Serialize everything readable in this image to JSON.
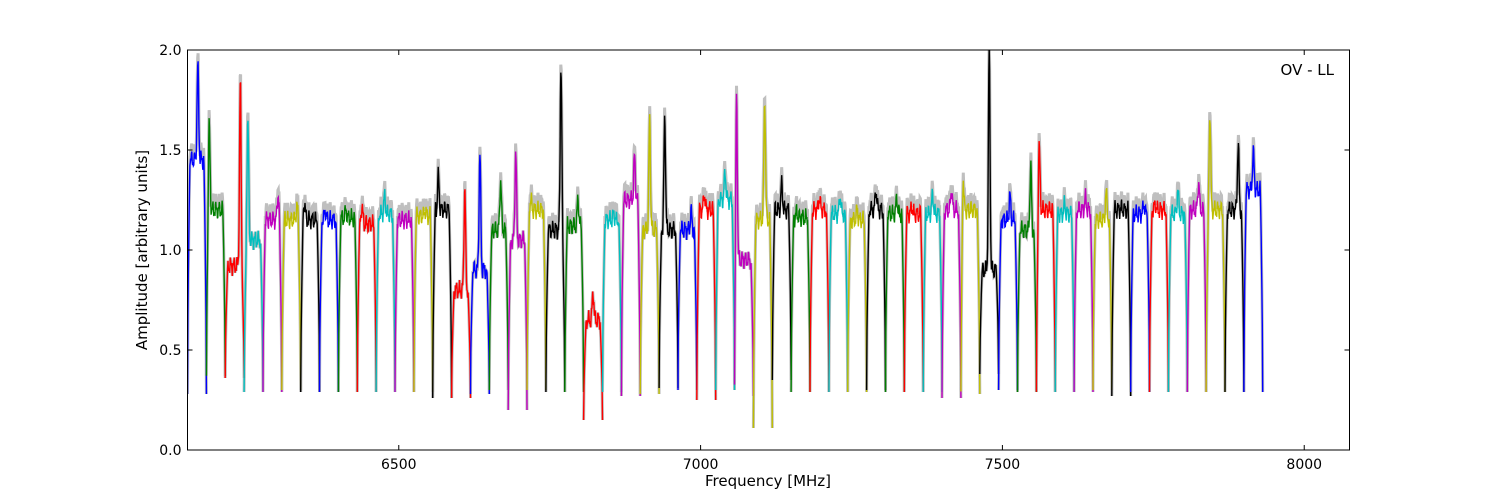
{
  "chart_data": {
    "type": "line",
    "xlabel": "Frequency [MHz]",
    "ylabel": "Amplitude [arbitrary units]",
    "annotation": "OV - LL",
    "xlim": [
      6150,
      8075
    ],
    "ylim": [
      0.0,
      2.0
    ],
    "xticks": [
      {
        "value": 6500,
        "label": "6500"
      },
      {
        "value": 7000,
        "label": "7000"
      },
      {
        "value": 7500,
        "label": "7500"
      },
      {
        "value": 8000,
        "label": "8000"
      }
    ],
    "yticks": [
      {
        "value": 0.0,
        "label": "0.0"
      },
      {
        "value": 0.5,
        "label": "0.5"
      },
      {
        "value": 1.0,
        "label": "1.0"
      },
      {
        "value": 1.5,
        "label": "1.5"
      },
      {
        "value": 2.0,
        "label": "2.0"
      }
    ],
    "grid": false,
    "legend": "none",
    "background_trace_color": "#bfbfbf",
    "palette": [
      "#0000ff",
      "#007f00",
      "#ff0000",
      "#00bfbf",
      "#bf00bf",
      "#bfbf00",
      "#000000"
    ],
    "band_start_mhz": 6150,
    "band_width_mhz": 31.25,
    "bands": [
      {
        "base": 1.45,
        "spikes": [
          [
            0.55,
            1.92
          ]
        ],
        "edge_low": 0.28,
        "color": "#0000ff"
      },
      {
        "base": 1.2,
        "spikes": [
          [
            0.15,
            1.62
          ]
        ],
        "edge_low": 0.37,
        "color": "#007f00"
      },
      {
        "base": 0.92,
        "spikes": [
          [
            0.8,
            1.84
          ]
        ],
        "edge_low": 0.36,
        "color": "#ff0000"
      },
      {
        "base": 1.05,
        "spikes": [
          [
            0.2,
            1.65
          ]
        ],
        "edge_low": 0.29,
        "color": "#00bfbf"
      },
      {
        "base": 1.15,
        "spikes": [
          [
            0.8,
            1.28
          ]
        ],
        "edge_low": 0.29,
        "color": "#bf00bf"
      },
      {
        "base": 1.15,
        "spikes": [
          [
            0.8,
            1.22
          ]
        ],
        "edge_low": 0.3,
        "color": "#bfbf00"
      },
      {
        "base": 1.15,
        "spikes": [
          [
            0.2,
            1.24
          ]
        ],
        "edge_low": 0.29,
        "color": "#000000"
      },
      {
        "base": 1.15,
        "spikes": [
          [
            0.3,
            1.2
          ]
        ],
        "edge_low": 0.29,
        "color": "#0000ff"
      },
      {
        "base": 1.16,
        "spikes": [
          [
            0.4,
            1.2
          ]
        ],
        "edge_low": 0.29,
        "color": "#007f00"
      },
      {
        "base": 1.13,
        "spikes": [
          [
            0.25,
            1.22
          ]
        ],
        "edge_low": 0.29,
        "color": "#ff0000"
      },
      {
        "base": 1.18,
        "spikes": [
          [
            0.45,
            1.27
          ]
        ],
        "edge_low": 0.29,
        "color": "#00bfbf"
      },
      {
        "base": 1.15,
        "spikes": [],
        "edge_low": 0.29,
        "color": "#bf00bf"
      },
      {
        "base": 1.17,
        "spikes": [
          [
            0.6,
            1.2
          ]
        ],
        "edge_low": 0.29,
        "color": "#bfbf00"
      },
      {
        "base": 1.2,
        "spikes": [
          [
            0.3,
            1.37
          ]
        ],
        "edge_low": 0.26,
        "color": "#000000"
      },
      {
        "base": 0.8,
        "spikes": [
          [
            0.7,
            1.32
          ]
        ],
        "edge_low": 0.26,
        "color": "#ff0000"
      },
      {
        "base": 0.9,
        "spikes": [
          [
            0.5,
            1.49
          ]
        ],
        "edge_low": 0.28,
        "color": "#0000ff"
      },
      {
        "base": 1.1,
        "spikes": [
          [
            0.6,
            1.35
          ]
        ],
        "edge_low": 0.3,
        "color": "#007f00"
      },
      {
        "base": 1.05,
        "spikes": [
          [
            0.4,
            1.5
          ]
        ],
        "edge_low": 0.2,
        "color": "#bf00bf"
      },
      {
        "base": 1.2,
        "spikes": [
          [
            0.2,
            1.25
          ]
        ],
        "edge_low": 0.3,
        "color": "#bfbf00"
      },
      {
        "base": 1.1,
        "spikes": [
          [
            0.8,
            1.93
          ]
        ],
        "edge_low": 0.29,
        "color": "#000000"
      },
      {
        "base": 1.12,
        "spikes": [
          [
            0.7,
            1.26
          ]
        ],
        "edge_low": 0.29,
        "color": "#007f00"
      },
      {
        "base": 0.65,
        "spikes": [
          [
            0.5,
            0.79
          ]
        ],
        "edge_low": 0.15,
        "color": "#ff0000"
      },
      {
        "base": 1.15,
        "spikes": [
          [
            0.6,
            1.18
          ]
        ],
        "edge_low": 0.29,
        "color": "#00bfbf"
      },
      {
        "base": 1.25,
        "spikes": [
          [
            0.7,
            1.47
          ]
        ],
        "edge_low": 0.27,
        "color": "#bf00bf"
      },
      {
        "base": 1.1,
        "spikes": [
          [
            0.5,
            1.66
          ]
        ],
        "edge_low": 0.28,
        "color": "#bfbf00"
      },
      {
        "base": 1.1,
        "spikes": [
          [
            0.3,
            1.66
          ]
        ],
        "edge_low": 0.31,
        "color": "#000000"
      },
      {
        "base": 1.1,
        "spikes": [
          [
            0.7,
            1.19
          ]
        ],
        "edge_low": 0.3,
        "color": "#0000ff"
      },
      {
        "base": 1.2,
        "spikes": [
          [
            0.4,
            1.28
          ]
        ],
        "edge_low": 0.25,
        "color": "#ff0000"
      },
      {
        "base": 1.25,
        "spikes": [
          [
            0.5,
            1.39
          ]
        ],
        "edge_low": 0.3,
        "color": "#00bfbf"
      },
      {
        "base": 0.95,
        "spikes": [
          [
            0.1,
            1.87
          ]
        ],
        "edge_low": 0.27,
        "color": "#bf00bf"
      },
      {
        "base": 1.15,
        "spikes": [
          [
            0.6,
            1.75
          ]
        ],
        "edge_low": 0.11,
        "color": "#bfbf00"
      },
      {
        "base": 1.2,
        "spikes": [
          [
            0.5,
            1.33
          ]
        ],
        "edge_low": 0.35,
        "color": "#000000"
      },
      {
        "base": 1.16,
        "spikes": [
          [
            0.3,
            1.19
          ]
        ],
        "edge_low": 0.29,
        "color": "#007f00"
      },
      {
        "base": 1.2,
        "spikes": [
          [
            0.5,
            1.26
          ]
        ],
        "edge_low": 0.29,
        "color": "#ff0000"
      },
      {
        "base": 1.18,
        "spikes": [
          [
            0.6,
            1.27
          ]
        ],
        "edge_low": 0.29,
        "color": "#00bfbf"
      },
      {
        "base": 1.15,
        "spikes": [
          [
            0.5,
            1.2
          ]
        ],
        "edge_low": 0.29,
        "color": "#bfbf00"
      },
      {
        "base": 1.2,
        "spikes": [
          [
            0.5,
            1.3
          ]
        ],
        "edge_low": 0.3,
        "color": "#000000"
      },
      {
        "base": 1.18,
        "spikes": [
          [
            0.6,
            1.26
          ]
        ],
        "edge_low": 0.29,
        "color": "#007f00"
      },
      {
        "base": 1.18,
        "spikes": [
          [
            0.4,
            1.22
          ]
        ],
        "edge_low": 0.29,
        "color": "#ff0000"
      },
      {
        "base": 1.18,
        "spikes": [
          [
            0.5,
            1.28
          ]
        ],
        "edge_low": 0.29,
        "color": "#00bfbf"
      },
      {
        "base": 1.2,
        "spikes": [
          [
            0.5,
            1.3
          ]
        ],
        "edge_low": 0.26,
        "color": "#bf00bf"
      },
      {
        "base": 1.2,
        "spikes": [
          [
            0.1,
            1.4
          ]
        ],
        "edge_low": 0.28,
        "color": "#bfbf00"
      },
      {
        "base": 0.9,
        "spikes": [
          [
            0.5,
            1.99
          ]
        ],
        "edge_low": 0.38,
        "color": "#000000"
      },
      {
        "base": 1.15,
        "spikes": [
          [
            0.6,
            1.27
          ]
        ],
        "edge_low": 0.3,
        "color": "#0000ff"
      },
      {
        "base": 1.1,
        "spikes": [
          [
            0.7,
            1.42
          ]
        ],
        "edge_low": 0.29,
        "color": "#007f00"
      },
      {
        "base": 1.2,
        "spikes": [
          [
            0.15,
            1.52
          ]
        ],
        "edge_low": 0.29,
        "color": "#ff0000"
      },
      {
        "base": 1.18,
        "spikes": [
          [
            0.5,
            1.23
          ]
        ],
        "edge_low": 0.29,
        "color": "#00bfbf"
      },
      {
        "base": 1.2,
        "spikes": [
          [
            0.6,
            1.26
          ]
        ],
        "edge_low": 0.29,
        "color": "#bf00bf"
      },
      {
        "base": 1.15,
        "spikes": [
          [
            0.7,
            1.29
          ]
        ],
        "edge_low": 0.3,
        "color": "#bfbf00"
      },
      {
        "base": 1.2,
        "spikes": [
          [
            0.5,
            1.21
          ]
        ],
        "edge_low": 0.27,
        "color": "#000000"
      },
      {
        "base": 1.18,
        "spikes": [
          [
            0.7,
            1.23
          ]
        ],
        "edge_low": 0.29,
        "color": "#0000ff"
      },
      {
        "base": 1.2,
        "spikes": [
          [
            0.3,
            1.23
          ]
        ],
        "edge_low": 0.29,
        "color": "#ff0000"
      },
      {
        "base": 1.18,
        "spikes": [
          [
            0.5,
            1.3
          ]
        ],
        "edge_low": 0.29,
        "color": "#00bfbf"
      },
      {
        "base": 1.2,
        "spikes": [
          [
            0.6,
            1.34
          ]
        ],
        "edge_low": 0.29,
        "color": "#bf00bf"
      },
      {
        "base": 1.2,
        "spikes": [
          [
            0.2,
            1.68
          ]
        ],
        "edge_low": 0.29,
        "color": "#bfbf00"
      },
      {
        "base": 1.2,
        "spikes": [
          [
            0.7,
            1.53
          ]
        ],
        "edge_low": 0.29,
        "color": "#000000"
      },
      {
        "base": 1.3,
        "spikes": [
          [
            0.5,
            1.49
          ]
        ],
        "edge_low": 0.29,
        "color": "#0000ff"
      }
    ]
  }
}
